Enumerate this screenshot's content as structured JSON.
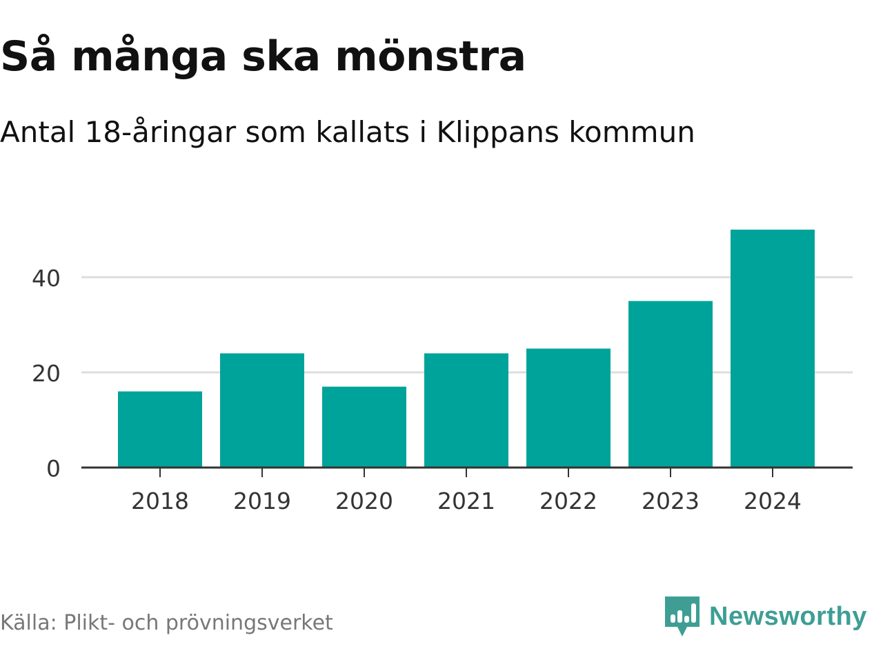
{
  "chart_data": {
    "type": "bar",
    "title": "Så många ska mönstra",
    "subtitle": "Antal 18-åringar som kallats i Klippans kommun",
    "categories": [
      "2018",
      "2019",
      "2020",
      "2021",
      "2022",
      "2023",
      "2024"
    ],
    "values": [
      16,
      24,
      17,
      24,
      25,
      35,
      50
    ],
    "ylim": [
      0,
      50
    ],
    "yticks": [
      0,
      20,
      40
    ],
    "xlabel": "",
    "ylabel": "",
    "grid": true,
    "bar_color": "#00a39a",
    "grid_color": "#dddddd",
    "axis_color": "#333333"
  },
  "footer": {
    "source": "Källa: Plikt- och prövningsverket",
    "brand": "Newsworthy",
    "brand_icon": "newsworthy-logo-icon",
    "brand_color": "#3e9e94"
  }
}
